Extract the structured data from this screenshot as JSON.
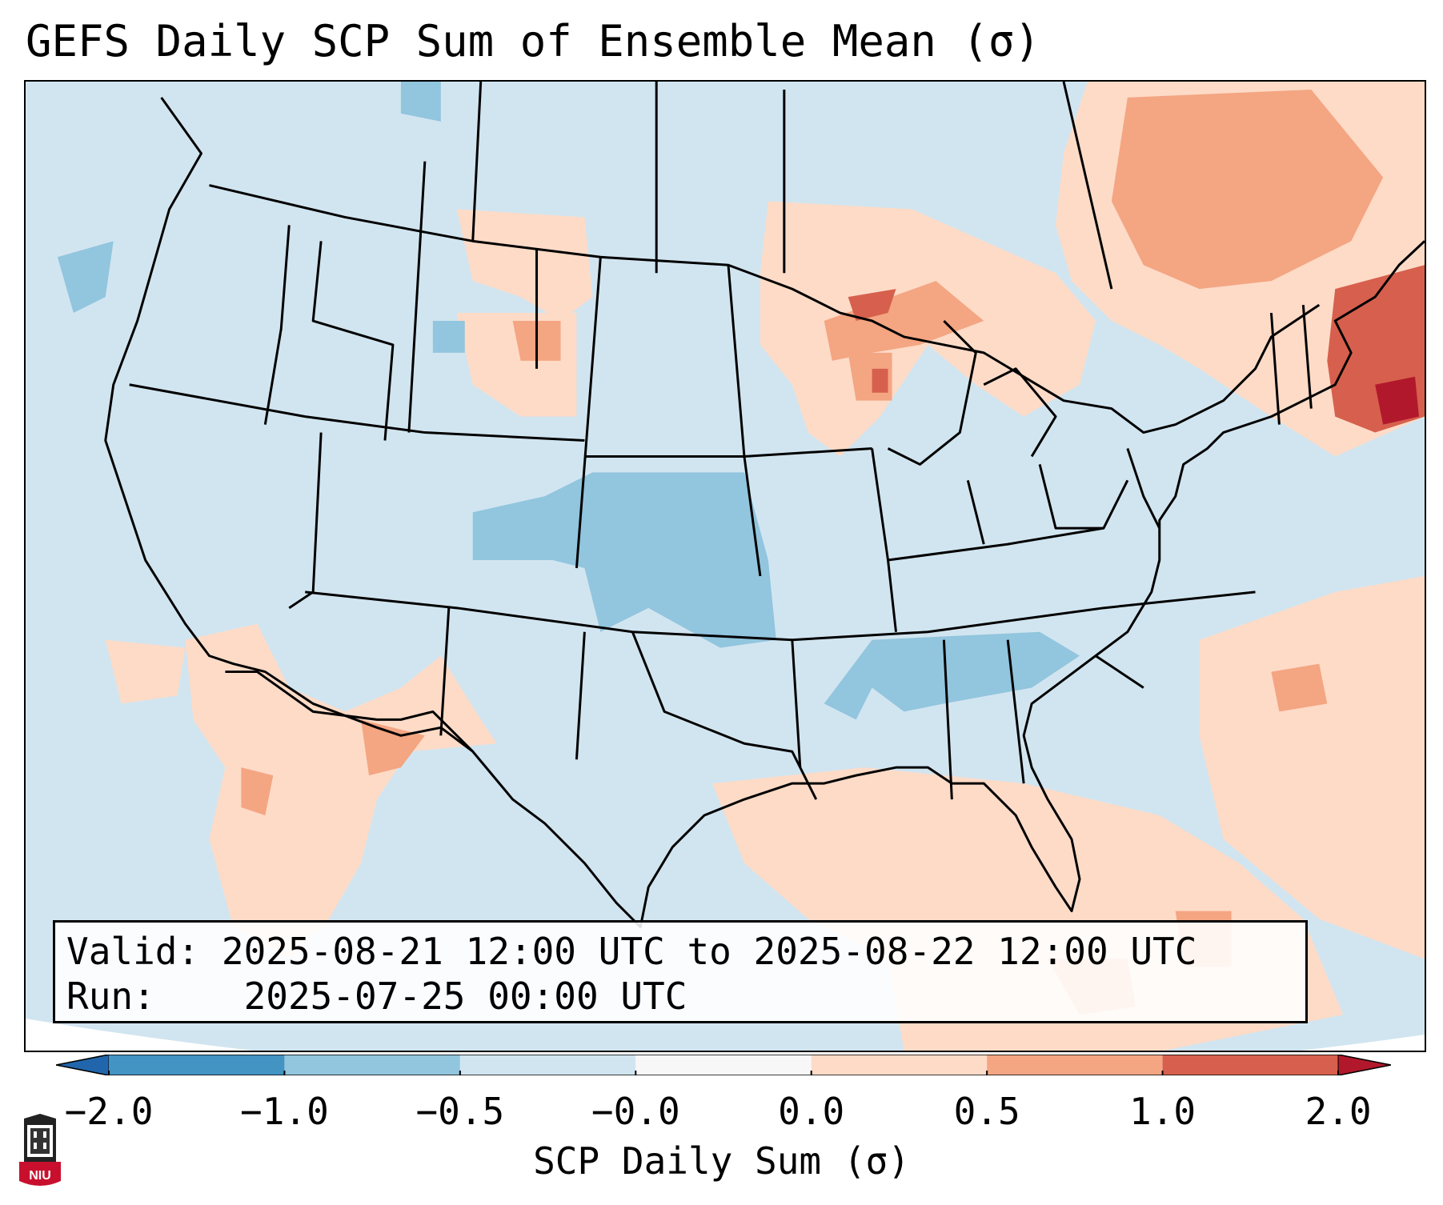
{
  "title": "GEFS Daily SCP Sum of Ensemble Mean (σ)",
  "info": {
    "valid_label": "Valid:",
    "valid_value": "2025-08-21 12:00 UTC to 2025-08-22 12:00 UTC",
    "run_label": "Run:",
    "run_value": "2025-07-25 00:00 UTC"
  },
  "colorbar": {
    "label": "SCP Daily Sum (σ)",
    "ticks": [
      "−2.0",
      "−1.0",
      "−0.5",
      "−0.0",
      "0.0",
      "0.5",
      "1.0",
      "2.0"
    ],
    "bins": [
      {
        "range": "<-2.0",
        "color": "#2166ac"
      },
      {
        "range": "-2.0 to -1.0",
        "color": "#4393c3"
      },
      {
        "range": "-1.0 to -0.5",
        "color": "#92c5de"
      },
      {
        "range": "-0.5 to -0.0",
        "color": "#d1e5f0"
      },
      {
        "range": "-0.0 to 0.0",
        "color": "#f7f7f7"
      },
      {
        "range": "0.0 to 0.5",
        "color": "#fddbc7"
      },
      {
        "range": "0.5 to 1.0",
        "color": "#f4a582"
      },
      {
        "range": "1.0 to 2.0",
        "color": "#d6604d"
      },
      {
        "range": ">2.0",
        "color": "#b2182b"
      }
    ]
  },
  "logo": {
    "text": "NIU",
    "color": "#c8102e"
  },
  "map": {
    "region": "Continental United States",
    "background_color": "#d1e5f0",
    "anomaly_patches": [
      {
        "area": "Northeast / New England",
        "level": "1.0 to 2.0",
        "color": "#d6604d"
      },
      {
        "area": "Eastern Canada",
        "level": "0.5 to 1.0",
        "color": "#f4a582"
      },
      {
        "area": "Upper Midwest / Wisconsin",
        "level": "0.5 to 1.0",
        "color": "#f4a582"
      },
      {
        "area": "Gulf of Mexico / Florida",
        "level": "0.0 to 0.5",
        "color": "#fddbc7"
      },
      {
        "area": "Desert Southwest / Mexico",
        "level": "0.0 to 0.5",
        "color": "#fddbc7"
      },
      {
        "area": "Central Plains",
        "level": "-1.0 to -0.5",
        "color": "#92c5de"
      },
      {
        "area": "Tennessee Valley",
        "level": "-1.0 to -0.5",
        "color": "#92c5de"
      }
    ]
  }
}
